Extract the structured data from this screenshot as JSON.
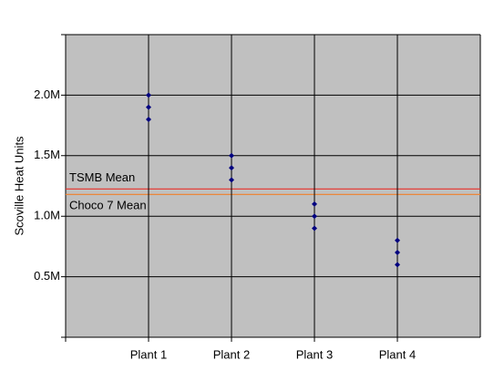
{
  "chart_data": {
    "type": "dot",
    "y_label": "Scoville Heat Units",
    "categories": [
      "Plant 1",
      "Plant 2",
      "Plant 3",
      "Plant 4"
    ],
    "values": [
      [
        2000000,
        1900000,
        1800000
      ],
      [
        1500000,
        1400000,
        1300000
      ],
      [
        1100000,
        1000000,
        900000
      ],
      [
        800000,
        700000,
        600000
      ]
    ],
    "color": "#000080",
    "ylim": [
      0,
      2500000
    ],
    "yticks": [
      {
        "value": 500000,
        "label": "0.5M"
      },
      {
        "value": 1000000,
        "label": "1.0M"
      },
      {
        "value": 1500000,
        "label": "1.5M"
      },
      {
        "value": 2000000,
        "label": "2.0M"
      }
    ],
    "grid": true,
    "reference_lines": [
      {
        "label": "TSMB Mean",
        "value": 1225000,
        "color": "#e8312a"
      },
      {
        "label": "Choco 7 Mean",
        "value": 1180000,
        "color": "#f07f2a"
      }
    ]
  }
}
